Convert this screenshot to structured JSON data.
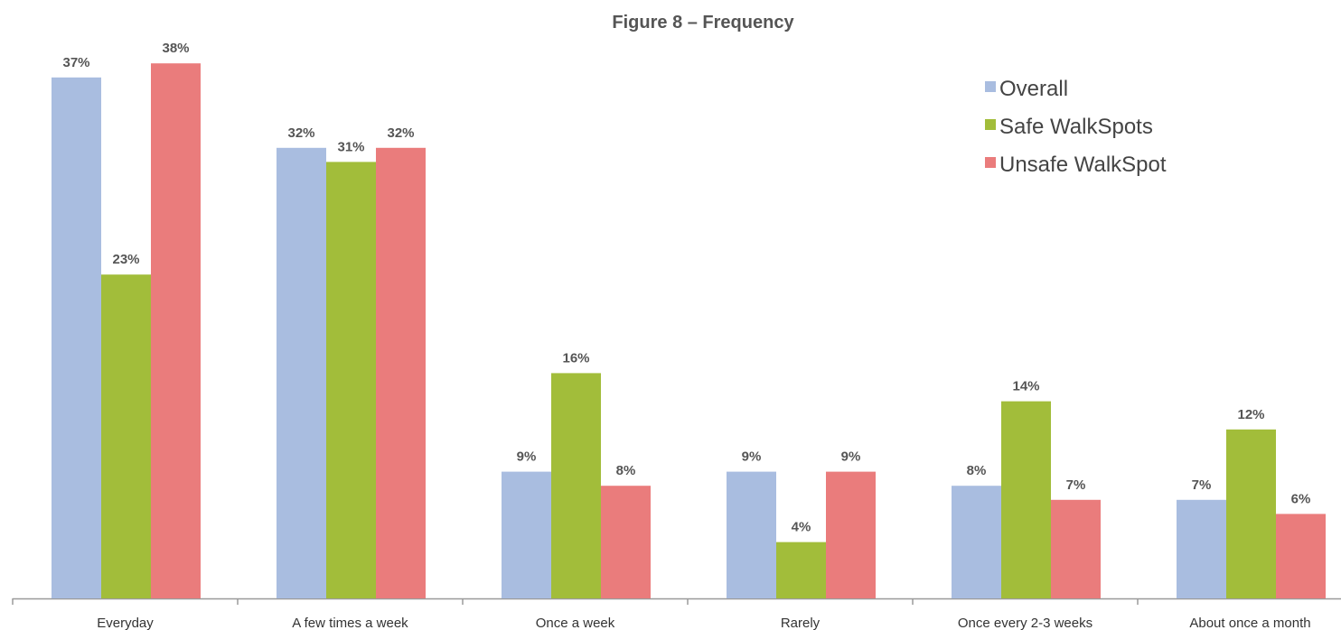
{
  "chart_data": {
    "type": "bar",
    "title": "Figure 8 – Frequency",
    "xlabel": "",
    "ylabel": "",
    "categories": [
      "Everyday",
      "A few times a week",
      "Once a week",
      "Rarely",
      "Once every 2-3 weeks",
      "About once a month"
    ],
    "series": [
      {
        "name": "Overall",
        "color": "#a9bde0",
        "values": [
          37,
          32,
          9,
          9,
          8,
          7
        ],
        "labels": [
          "37%",
          "32%",
          "9%",
          "9%",
          "8%",
          "7%"
        ]
      },
      {
        "name": "Safe WalkSpots",
        "color": "#a2bd3a",
        "values": [
          23,
          31,
          16,
          4,
          14,
          12
        ],
        "labels": [
          "23%",
          "31%",
          "16%",
          "4%",
          "14%",
          "12%"
        ]
      },
      {
        "name": "Unsafe WalkSpot",
        "color": "#ea7c7c",
        "values": [
          38,
          32,
          8,
          9,
          7,
          6
        ],
        "labels": [
          "38%",
          "32%",
          "8%",
          "9%",
          "7%",
          "6%"
        ]
      }
    ],
    "ylim": [
      0,
      40
    ],
    "grid": false,
    "legend": "top-right"
  }
}
